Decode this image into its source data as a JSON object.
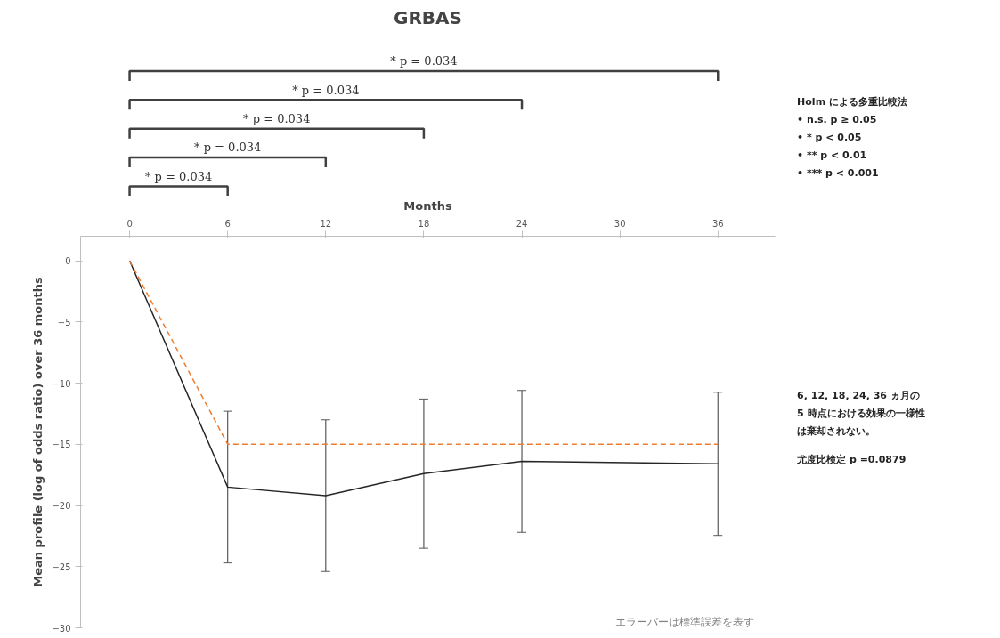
{
  "chart_data": {
    "type": "line",
    "title": "GRBAS",
    "xlabel": "Months",
    "ylabel": "Mean profile (log of odds ratio) over 36 months",
    "x": [
      0,
      6,
      12,
      18,
      24,
      36
    ],
    "series": [
      {
        "color": "#262626",
        "values": [
          0,
          -18.5,
          -19.2,
          -17.4,
          -16.4,
          -16.6
        ],
        "errors": [
          null,
          6.2,
          6.2,
          6.1,
          5.8,
          5.85
        ],
        "line_style": "solid"
      },
      {
        "color": "#ed7d31",
        "values": [
          0,
          -15,
          -15,
          -15,
          -15,
          -15
        ],
        "line_style": "dashed"
      }
    ],
    "xlim": [
      -3,
      39.5
    ],
    "ylim": [
      -30,
      2
    ],
    "xticks": [
      0,
      6,
      12,
      18,
      24,
      30,
      36
    ],
    "yticks": [
      0,
      -5,
      -10,
      -15,
      -20,
      -25,
      -30
    ],
    "grid": false,
    "marker": "none",
    "annotations": [
      "* p = 0.034",
      "* p = 0.034",
      "* p = 0.034",
      "* p = 0.034",
      "* p = 0.034",
      "Holm による多重比較法",
      "• n.s.   p ≥ 0.05",
      "• *        p < 0.05",
      "• **      p < 0.01",
      "• ***    p < 0.001",
      "6, 12, 18, 24, 36 ヵ月の",
      " 5 時点における効果の一様性",
      "は棄却されない。",
      "尤度比検定   p =0.0879",
      "エラーバーは標準誤差を表す"
    ]
  }
}
